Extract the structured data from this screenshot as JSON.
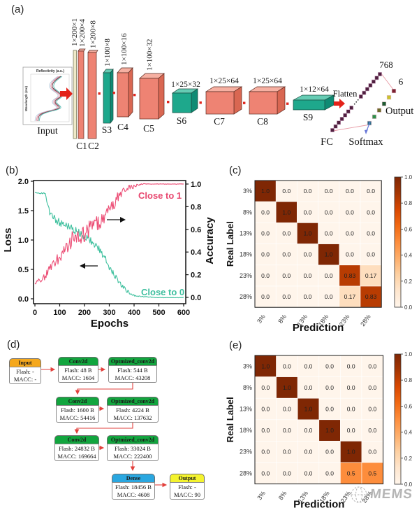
{
  "figure": {
    "watermark": {
      "text": "MEMS"
    },
    "panel_a": {
      "label": "(a)",
      "input_plot": {
        "xlabel": "Reflectivity (a.u.)",
        "ylabel": "Wavelength (nm)",
        "caption": "Input"
      },
      "dims": [
        "1×200×1",
        "1×200×4",
        "1×200×8",
        "1×100×8",
        "1×100×16",
        "1×100×32",
        "1×25×32",
        "1×25×64",
        "1×25×64",
        "1×12×64"
      ],
      "layer_names": [
        "C1",
        "C2",
        "S3",
        "C4",
        "C5",
        "S6",
        "C7",
        "C8",
        "S9"
      ],
      "flatten_label": "Flatten",
      "fc": {
        "label": "FC",
        "units": "768"
      },
      "softmax_label": "Softmax",
      "output": {
        "label": "Output",
        "units": "6"
      }
    },
    "panel_b": {
      "label": "(b)"
    },
    "panel_c": {
      "label": "(c)"
    },
    "panel_d": {
      "label": "(d)",
      "nodes": [
        {
          "title": "Input",
          "header_color": "#f5a81c",
          "lines": [
            "Flash: -",
            "MACC: -"
          ]
        },
        {
          "title": "Conv2d",
          "header_color": "#12a53e",
          "lines": [
            "Flash: 48 B",
            "MACC: 1604"
          ]
        },
        {
          "title": "Optmized_conv2d",
          "header_color": "#12a53e",
          "lines": [
            "Flash: 544 B",
            "MACC: 43208"
          ]
        },
        {
          "title": "Conv2d",
          "header_color": "#12a53e",
          "lines": [
            "Flash: 1600 B",
            "MACC: 54416"
          ]
        },
        {
          "title": "Optmized_conv2d",
          "header_color": "#12a53e",
          "lines": [
            "Flash: 4224 B",
            "MACC: 137632"
          ]
        },
        {
          "title": "Conv2d",
          "header_color": "#12a53e",
          "lines": [
            "Flash: 24832 B",
            "MACC: 169664"
          ]
        },
        {
          "title": "Optmized_conv2d",
          "header_color": "#12a53e",
          "lines": [
            "Flash: 33024 B",
            "MACC: 222400"
          ]
        },
        {
          "title": "Dense",
          "header_color": "#2aa7e0",
          "lines": [
            "Flash: 18456 B",
            "MACC: 4608"
          ]
        },
        {
          "title": "Output",
          "header_color": "#f4f32e",
          "lines": [
            "Flash: -",
            "MACC: 90"
          ]
        }
      ]
    },
    "panel_e": {
      "label": "(e)"
    }
  },
  "chart_data": [
    {
      "panel": "b",
      "type": "line",
      "title": "",
      "xlabel": "Epochs",
      "ylabel_left": "Loss",
      "ylabel_right": "Accuracy",
      "xlim": [
        0,
        600
      ],
      "ylim_left": [
        0.0,
        2.0
      ],
      "ylim_right": [
        0.0,
        1.0
      ],
      "x_ticks": [
        0,
        100,
        200,
        300,
        400,
        500,
        600
      ],
      "left_ticks": [
        0.0,
        0.5,
        1.0,
        1.5,
        2.0
      ],
      "right_ticks": [
        0.0,
        0.2,
        0.4,
        0.6,
        0.8,
        1.0
      ],
      "annotations": [
        {
          "text": "Close to 1",
          "color": "#e8476f"
        },
        {
          "text": "Close to 0",
          "color": "#3fbf9f"
        }
      ],
      "series": [
        {
          "name": "Loss",
          "axis": "left",
          "color": "#3ec09e",
          "x": [
            0,
            20,
            40,
            48,
            55,
            70,
            90,
            110,
            130,
            150,
            165,
            180,
            200,
            220,
            240,
            260,
            280,
            300,
            315,
            330,
            345,
            360,
            380,
            400,
            430,
            460,
            500,
            550,
            600
          ],
          "y": [
            1.82,
            1.8,
            1.78,
            1.7,
            1.5,
            1.4,
            1.32,
            1.28,
            1.24,
            1.2,
            1.15,
            1.12,
            1.05,
            1.0,
            0.92,
            0.84,
            0.72,
            0.55,
            0.45,
            0.35,
            0.26,
            0.18,
            0.1,
            0.06,
            0.04,
            0.03,
            0.02,
            0.02,
            0.02
          ],
          "noise": [
            0.015,
            0.02,
            0.03,
            0.06,
            0.07,
            0.06,
            0.07,
            0.06,
            0.06,
            0.08,
            0.07,
            0.06,
            0.06,
            0.06,
            0.06,
            0.06,
            0.06,
            0.06,
            0.05,
            0.05,
            0.04,
            0.04,
            0.03,
            0.015,
            0.008,
            0.005,
            0.003,
            0.003,
            0.003
          ]
        },
        {
          "name": "Accuracy",
          "axis": "right",
          "color": "#ec4d75",
          "x": [
            0,
            20,
            40,
            60,
            80,
            100,
            120,
            140,
            160,
            180,
            200,
            220,
            240,
            260,
            280,
            300,
            320,
            340,
            360,
            380,
            400,
            420,
            440,
            470,
            500,
            550,
            600
          ],
          "y": [
            0.13,
            0.16,
            0.19,
            0.25,
            0.31,
            0.37,
            0.43,
            0.49,
            0.52,
            0.54,
            0.57,
            0.61,
            0.64,
            0.67,
            0.71,
            0.77,
            0.84,
            0.89,
            0.94,
            0.96,
            0.98,
            0.995,
            1.0,
            1.0,
            1.0,
            1.0,
            1.0
          ],
          "noise": [
            0.02,
            0.03,
            0.04,
            0.05,
            0.05,
            0.06,
            0.07,
            0.07,
            0.08,
            0.08,
            0.08,
            0.07,
            0.07,
            0.07,
            0.07,
            0.06,
            0.06,
            0.05,
            0.04,
            0.03,
            0.015,
            0.008,
            0.004,
            0.002,
            0.002,
            0.002,
            0.002
          ]
        }
      ]
    },
    {
      "panel": "c",
      "type": "heatmap",
      "title": "",
      "xlabel": "Prediction",
      "ylabel": "Real Label",
      "categories": [
        "3%",
        "8%",
        "13%",
        "18%",
        "23%",
        "28%"
      ],
      "matrix": [
        [
          1.0,
          0.0,
          0.0,
          0.0,
          0.0,
          0.0
        ],
        [
          0.0,
          1.0,
          0.0,
          0.0,
          0.0,
          0.0
        ],
        [
          0.0,
          0.0,
          1.0,
          0.0,
          0.0,
          0.0
        ],
        [
          0.0,
          0.0,
          0.0,
          1.0,
          0.0,
          0.0
        ],
        [
          0.0,
          0.0,
          0.0,
          0.0,
          0.83,
          0.17
        ],
        [
          0.0,
          0.0,
          0.0,
          0.0,
          0.17,
          0.83
        ]
      ],
      "colorbar_ticks": [
        1.0,
        0.8,
        0.6,
        0.4,
        0.2,
        0.0
      ],
      "colormap": "Oranges"
    },
    {
      "panel": "e",
      "type": "heatmap",
      "title": "",
      "xlabel": "Prediction",
      "ylabel": "Real Label",
      "categories": [
        "3%",
        "8%",
        "13%",
        "18%",
        "23%",
        "28%"
      ],
      "matrix": [
        [
          1.0,
          0.0,
          0.0,
          0.0,
          0.0,
          0.0
        ],
        [
          0.0,
          1.0,
          0.0,
          0.0,
          0.0,
          0.0
        ],
        [
          0.0,
          0.0,
          1.0,
          0.0,
          0.0,
          0.0
        ],
        [
          0.0,
          0.0,
          0.0,
          1.0,
          0.0,
          0.0
        ],
        [
          0.0,
          0.0,
          0.0,
          0.0,
          1.0,
          0.0
        ],
        [
          0.0,
          0.0,
          0.0,
          0.0,
          0.5,
          0.5
        ]
      ],
      "colorbar_ticks": [
        1.0,
        0.8,
        0.6,
        0.4,
        0.2,
        0.0
      ],
      "colormap": "Oranges"
    }
  ]
}
